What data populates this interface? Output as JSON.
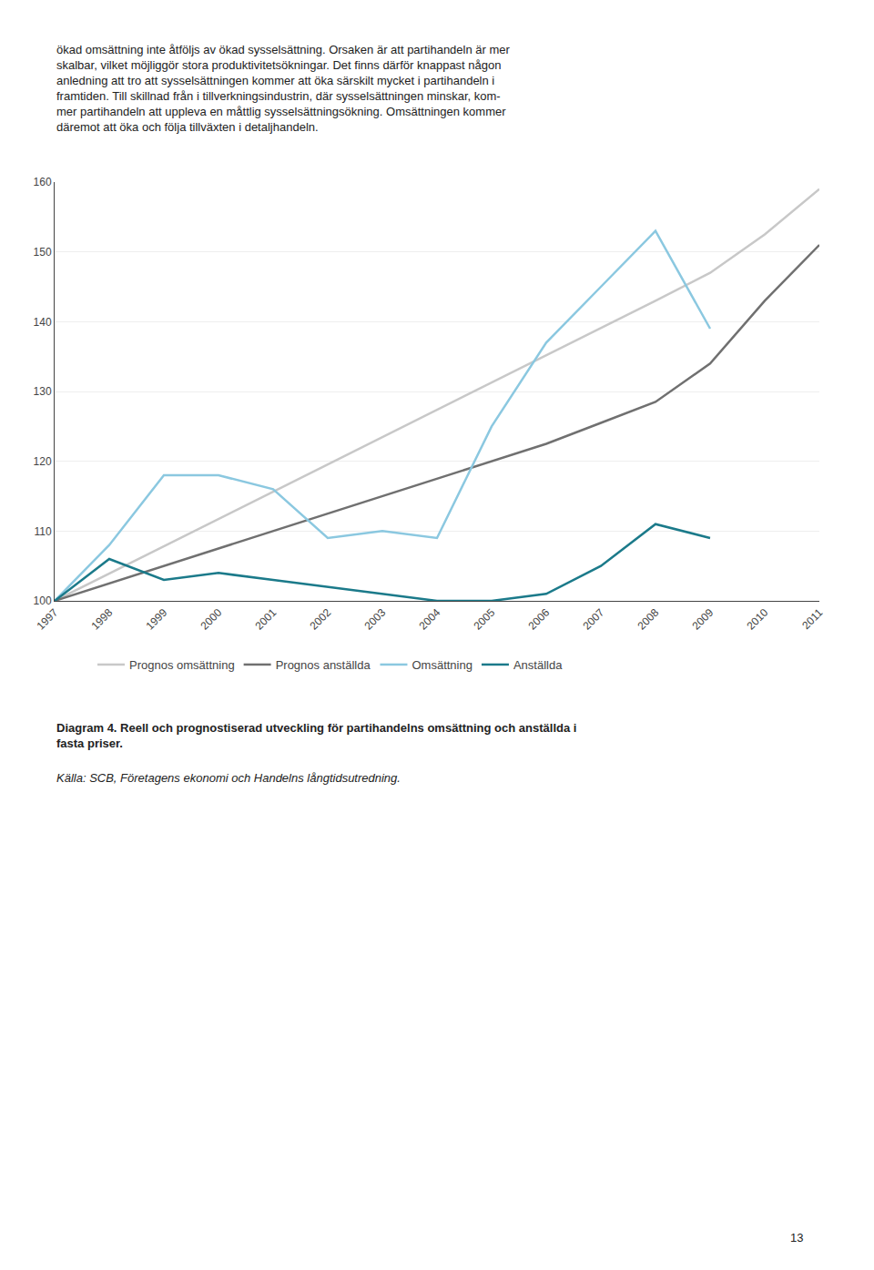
{
  "chart_data": {
    "type": "line",
    "x": [
      1997,
      1998,
      1999,
      2000,
      2001,
      2002,
      2003,
      2004,
      2005,
      2006,
      2007,
      2008,
      2009,
      2010,
      2011
    ],
    "series": [
      {
        "name": "Prognos omsättning",
        "color": "#C8C8C8",
        "values": [
          100,
          103.9,
          107.8,
          111.7,
          115.6,
          119.5,
          123.4,
          127.3,
          131.2,
          135.1,
          139.0,
          143.0,
          147.0,
          152.5,
          159.0
        ]
      },
      {
        "name": "Prognos anställda",
        "color": "#707070",
        "values": [
          100,
          102.5,
          105.0,
          107.5,
          110.0,
          112.5,
          115.0,
          117.5,
          120.0,
          122.5,
          125.5,
          128.5,
          134.0,
          143.0,
          151.0
        ]
      },
      {
        "name": "Omsättning",
        "color": "#8BC8E0",
        "values": [
          100,
          108,
          118,
          118,
          116,
          109,
          110,
          109,
          125,
          137,
          145,
          153,
          139,
          null,
          null
        ]
      },
      {
        "name": "Anställda",
        "color": "#1B7A8A",
        "values": [
          100,
          106,
          103,
          104,
          103,
          102,
          101,
          100,
          100,
          101,
          105,
          111,
          109,
          null,
          null
        ]
      }
    ],
    "xlim": [
      1997,
      2011
    ],
    "xticks": [
      1997,
      1998,
      1999,
      2000,
      2001,
      2002,
      2003,
      2004,
      2005,
      2006,
      2007,
      2008,
      2009,
      2010,
      2011
    ],
    "ylim": [
      100,
      160
    ],
    "yticks": [
      100,
      110,
      120,
      130,
      140,
      150,
      160
    ],
    "grid": true,
    "legend": "bottom",
    "annotations": [
      "ökad omsättning inte åtföljs av ökad sysselsättning. Orsaken är att partihandeln är mer\nskalbar, vilket möjliggör stora produktivitetsökningar. Det finns därför knappast någon\nanledning att tro att sysselsättningen kommer att öka särskilt mycket i partihandeln i\nframtiden. Till skillnad från i tillverkningsindustrin, där sysselsättningen minskar, kom-\nmer partihandeln att uppleva en måttlig sysselsättningsökning. Omsättningen kommer\ndäremot att öka och följa tillväxten i detaljhandeln.",
      "Diagram 4. Reell och prognostiserad utveckling för partihandelns omsättning och anställda i\nfasta priser.",
      "Källa: SCB, Företagens ekonomi och Handelns långtidsutredning.",
      "13"
    ]
  }
}
